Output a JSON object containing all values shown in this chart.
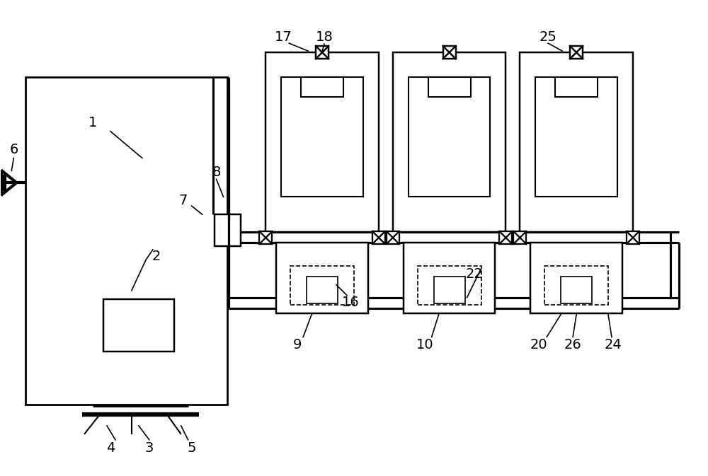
{
  "background": "#ffffff",
  "lw": 1.5,
  "fig_width": 10.0,
  "fig_height": 6.73
}
